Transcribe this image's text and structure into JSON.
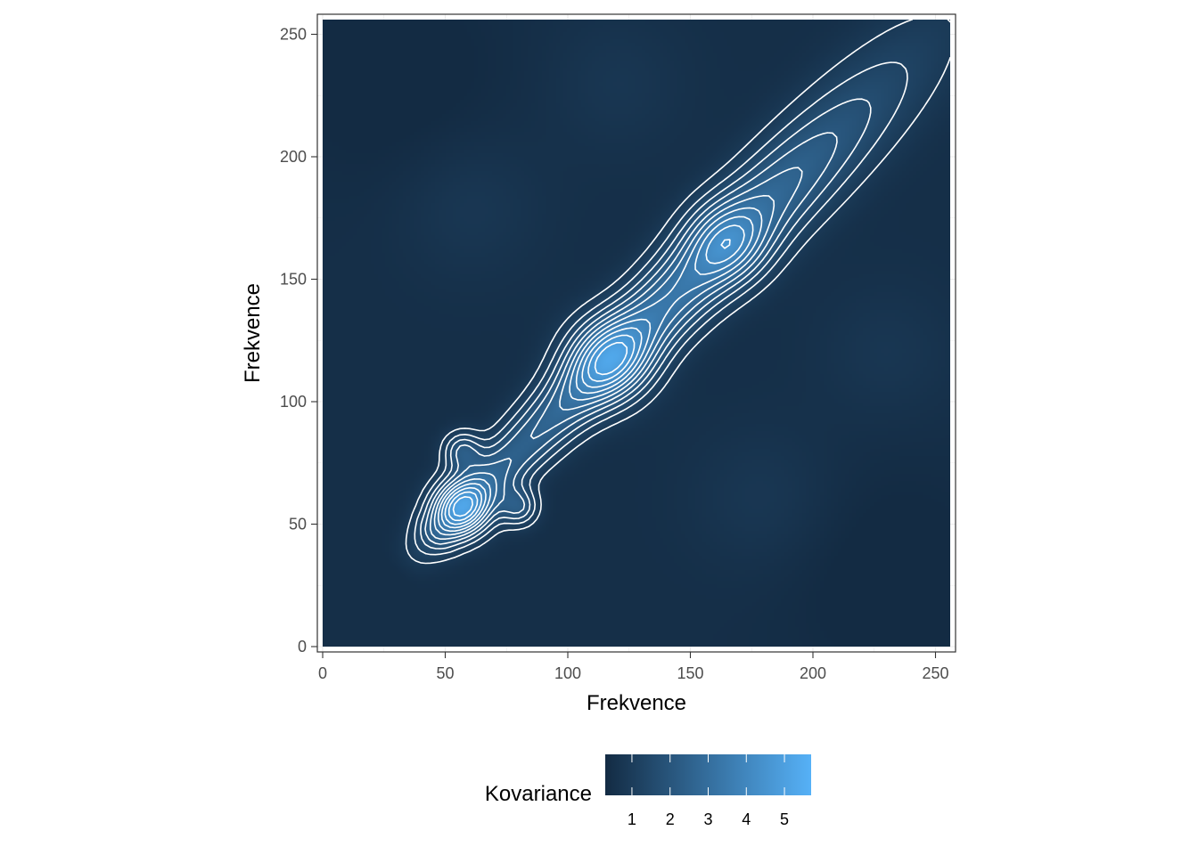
{
  "chart_data": {
    "type": "heatmap",
    "title": "",
    "xlabel": "Frekvence",
    "ylabel": "Frekvence",
    "xlim": [
      0,
      256
    ],
    "ylim": [
      0,
      256
    ],
    "x_ticks": [
      0,
      50,
      100,
      150,
      200,
      250
    ],
    "y_ticks": [
      0,
      50,
      100,
      150,
      200,
      250
    ],
    "grid": true,
    "contours": true,
    "contour_color": "#ffffff",
    "fill_scale": {
      "low": "#132B43",
      "high": "#56B1F7",
      "min": 0.3,
      "max": 5.7
    },
    "legend": {
      "title": "Kovariance",
      "position": "bottom",
      "breaks": [
        1,
        2,
        3,
        4,
        5
      ]
    },
    "peaks": [
      {
        "x": 57,
        "y": 57,
        "value": 5.2
      },
      {
        "x": 117,
        "y": 117,
        "value": 5.6
      },
      {
        "x": 165,
        "y": 165,
        "value": 5.0
      },
      {
        "x": 57,
        "y": 80,
        "value": 2.6
      },
      {
        "x": 80,
        "y": 57,
        "value": 2.6
      }
    ]
  },
  "colors": {
    "panel_border": "#333333",
    "tick_label": "#4d4d4d"
  }
}
